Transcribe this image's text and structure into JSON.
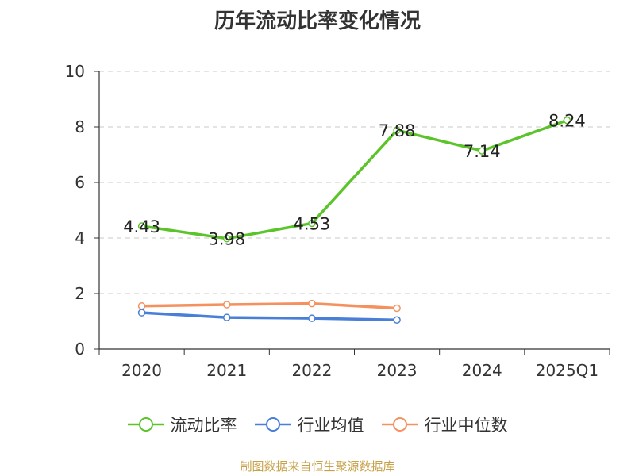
{
  "chart_data": {
    "type": "line",
    "title": "历年流动比率变化情况",
    "categories": [
      "2020",
      "2021",
      "2022",
      "2023",
      "2024",
      "2025Q1"
    ],
    "ylim": [
      0,
      10
    ],
    "yticks": [
      "0",
      "2",
      "4",
      "6",
      "8",
      "10"
    ],
    "grid": true,
    "legend_position": "bottom",
    "series": [
      {
        "name": "流动比率",
        "color": "#5cc42b",
        "values": [
          4.43,
          3.98,
          4.53,
          7.88,
          7.14,
          8.24
        ],
        "labels": [
          "4.43",
          "3.98",
          "4.53",
          "7.88",
          "7.14",
          "8.24"
        ]
      },
      {
        "name": "行业均值",
        "color": "#4a7fd8",
        "values": [
          1.31,
          1.14,
          1.11,
          1.05,
          null,
          null
        ]
      },
      {
        "name": "行业中位数",
        "color": "#f4915e",
        "values": [
          1.55,
          1.6,
          1.64,
          1.47,
          null,
          null
        ]
      }
    ]
  },
  "footer": {
    "source": "制图数据来自恒生聚源数据库"
  }
}
